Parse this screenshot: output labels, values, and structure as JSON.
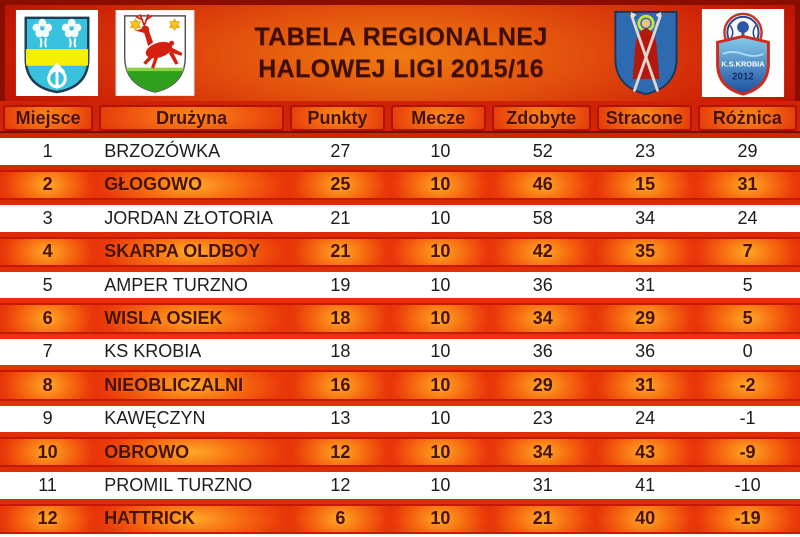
{
  "colors": {
    "background-red": "#d92d08",
    "row-glow-orange": "#ffaa28",
    "row-red": "#e93409",
    "header-text": "#481106",
    "title-text": "#3c0e04",
    "white-row": "#ffffff"
  },
  "banner": {
    "title_line1": "TABELA REGIONALNEJ",
    "title_line2": "HALOWEJ LIGI 2015/16",
    "badge": {
      "line1": "K.S.KROBIA",
      "line2": "2012"
    },
    "crest_icons": [
      "coat-of-arms-trees-anchor",
      "coat-of-arms-red-deer",
      "coat-of-arms-saint-with-staves",
      "ks-krobia-2012-badge"
    ]
  },
  "chart_data": {
    "type": "table",
    "title": "TABELA REGIONALNEJ HALOWEJ LIGI 2015/16",
    "columns": [
      "Miejsce",
      "Drużyna",
      "Punkty",
      "Mecze",
      "Zdobyte",
      "Stracone",
      "Różnica"
    ],
    "rows": [
      [
        1,
        "BRZOZÓWKA",
        27,
        10,
        52,
        23,
        29
      ],
      [
        2,
        "GŁOGOWO",
        25,
        10,
        46,
        15,
        31
      ],
      [
        3,
        "JORDAN ZŁOTORIA",
        21,
        10,
        58,
        34,
        24
      ],
      [
        4,
        "SKARPA OLDBOY",
        21,
        10,
        42,
        35,
        7
      ],
      [
        5,
        "AMPER TURZNO",
        19,
        10,
        36,
        31,
        5
      ],
      [
        6,
        "WISLA OSIEK",
        18,
        10,
        34,
        29,
        5
      ],
      [
        7,
        "KS KROBIA",
        18,
        10,
        36,
        36,
        0
      ],
      [
        8,
        "NIEOBLICZALNI",
        16,
        10,
        29,
        31,
        -2
      ],
      [
        9,
        "KAWĘCZYN",
        13,
        10,
        23,
        24,
        -1
      ],
      [
        10,
        "OBROWO",
        12,
        10,
        34,
        43,
        -9
      ],
      [
        11,
        "PROMIL TURZNO",
        12,
        10,
        31,
        41,
        -10
      ],
      [
        12,
        "HATTRICK",
        6,
        10,
        21,
        40,
        -19
      ]
    ]
  }
}
